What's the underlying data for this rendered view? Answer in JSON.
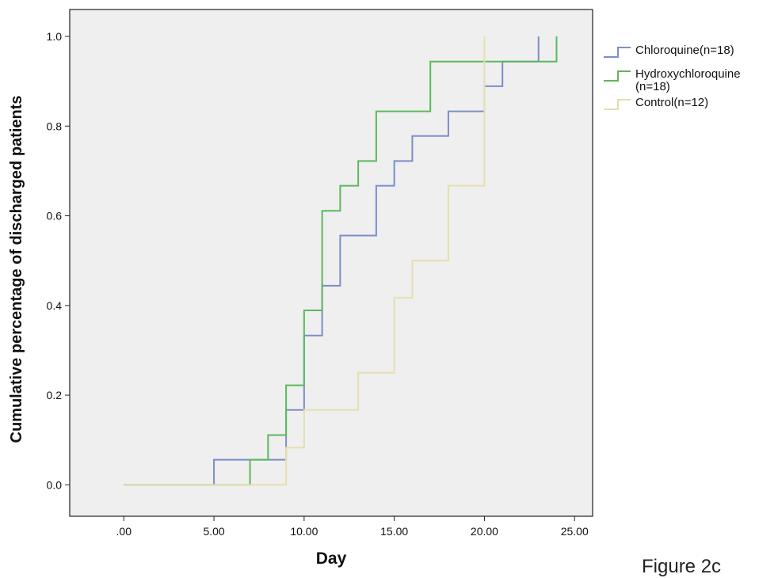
{
  "chart_data": {
    "type": "line",
    "step": true,
    "xlabel": "Day",
    "ylabel": "Cumulative  percentage of discharged patients",
    "xlim": [
      -3,
      26
    ],
    "ylim": [
      -0.07,
      1.06
    ],
    "x_ticks": [
      0,
      5,
      10,
      15,
      20,
      25
    ],
    "x_tick_labels": [
      ".00",
      "5.00",
      "10.00",
      "15.00",
      "20.00",
      "25.00"
    ],
    "y_ticks": [
      0,
      0.2,
      0.4,
      0.6,
      0.8,
      1.0
    ],
    "y_tick_labels": [
      "0.0",
      "0.2",
      "0.4",
      "0.6",
      "0.8",
      "1.0"
    ],
    "grid": false,
    "legend_position": "right",
    "series": [
      {
        "name": "Chloroquine(n=18)",
        "color": "#7b8ec8",
        "x": [
          0,
          5,
          7,
          9,
          10,
          11,
          12,
          14,
          15,
          16,
          18,
          20,
          21,
          23
        ],
        "y": [
          0,
          0.056,
          0.056,
          0.167,
          0.333,
          0.444,
          0.556,
          0.667,
          0.722,
          0.778,
          0.833,
          0.889,
          0.944,
          1.0
        ]
      },
      {
        "name": "Hydroxychloroquine(n=18)",
        "legend_lines": [
          "Hydroxychloroquine",
          "(n=18)"
        ],
        "color": "#5cb85c",
        "x": [
          0,
          7,
          8,
          9,
          10,
          11,
          12,
          13,
          14,
          17,
          24
        ],
        "y": [
          0,
          0.056,
          0.111,
          0.222,
          0.389,
          0.611,
          0.667,
          0.722,
          0.833,
          0.944,
          1.0
        ]
      },
      {
        "name": "Control(n=12)",
        "color": "#e6dfae",
        "x": [
          0,
          9,
          10,
          13,
          15,
          16,
          18,
          20
        ],
        "y": [
          0,
          0.083,
          0.167,
          0.25,
          0.417,
          0.5,
          0.667,
          1.0
        ]
      }
    ]
  },
  "caption": "Figure 2c"
}
